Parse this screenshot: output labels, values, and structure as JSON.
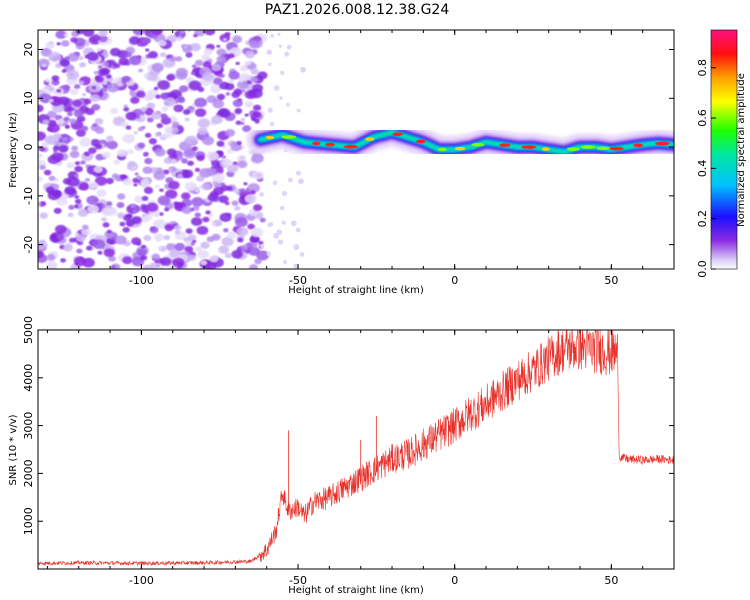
{
  "title": "PAZ1.2026.008.12.38.G24",
  "colors": {
    "snr_line": "#e8302a",
    "noise_purple": "#8a2be2",
    "axis": "#000000"
  },
  "colorbar": {
    "label": "Normalized spectral amplitude",
    "ticks": [
      "0.0",
      "0.2",
      "0.4",
      "0.6",
      "0.8"
    ],
    "tick_values": [
      0.0,
      0.2,
      0.4,
      0.6,
      0.8
    ],
    "range": [
      0,
      0.95
    ]
  },
  "chart_data": [
    {
      "type": "heatmap",
      "name": "spectrogram",
      "xlabel": "Height of straight line (km)",
      "ylabel": "Frequency (Hz)",
      "xlim": [
        -133,
        70
      ],
      "ylim": [
        -25,
        24
      ],
      "xticks": [
        "-100",
        "-50",
        "0",
        "50"
      ],
      "xtick_values": [
        -100,
        -50,
        0,
        50
      ],
      "yticks": [
        "20",
        "10",
        "0",
        "-10",
        "-20"
      ],
      "ytick_values": [
        20,
        10,
        0,
        -10,
        -20
      ],
      "noise_region_x": [
        -133,
        -62
      ],
      "signal_track": {
        "x": [
          -62,
          -55,
          -48,
          -40,
          -32,
          -26,
          -20,
          -15,
          -10,
          -5,
          0,
          5,
          10,
          15,
          20,
          25,
          30,
          35,
          40,
          45,
          50,
          55,
          60,
          65,
          70
        ],
        "freq": [
          1.5,
          2.5,
          1.0,
          0.5,
          0.0,
          2.0,
          3.0,
          2.0,
          1.0,
          -0.5,
          -0.5,
          0.0,
          1.0,
          0.5,
          0.0,
          0.0,
          -0.5,
          -1.0,
          0.0,
          0.0,
          -0.5,
          0.0,
          0.5,
          0.8,
          0.5
        ]
      }
    },
    {
      "type": "line",
      "name": "snr",
      "xlabel": "Height of straight line (km)",
      "ylabel": "SNR (10 * v/v)",
      "xlim": [
        -133,
        70
      ],
      "ylim": [
        0,
        5000
      ],
      "xticks": [
        "-100",
        "-50",
        "0",
        "50"
      ],
      "xtick_values": [
        -100,
        -50,
        0,
        50
      ],
      "yticks": [
        "1000",
        "2000",
        "3000",
        "4000",
        "5000"
      ],
      "ytick_values": [
        1000,
        2000,
        3000,
        4000,
        5000
      ],
      "series": [
        {
          "name": "SNR",
          "x": [
            -133,
            -120,
            -100,
            -80,
            -65,
            -60,
            -57,
            -55,
            -53,
            -50,
            -48,
            -45,
            -40,
            -35,
            -30,
            -25,
            -20,
            -15,
            -10,
            -5,
            0,
            5,
            10,
            15,
            20,
            25,
            30,
            35,
            40,
            45,
            50,
            52,
            52.5,
            55,
            60,
            65,
            70
          ],
          "y": [
            120,
            130,
            120,
            130,
            160,
            400,
            800,
            1600,
            1200,
            1300,
            1100,
            1400,
            1500,
            1700,
            1900,
            2100,
            2300,
            2400,
            2600,
            2800,
            3000,
            3250,
            3450,
            3700,
            3950,
            4150,
            4400,
            4600,
            4650,
            4600,
            4550,
            4500,
            2350,
            2300,
            2280,
            2300,
            2280
          ],
          "spikes": [
            {
              "x": -53,
              "y": 2900
            },
            {
              "x": -30,
              "y": 2700
            },
            {
              "x": -25,
              "y": 3200
            },
            {
              "x": 33,
              "y": 5100
            }
          ]
        }
      ]
    }
  ]
}
